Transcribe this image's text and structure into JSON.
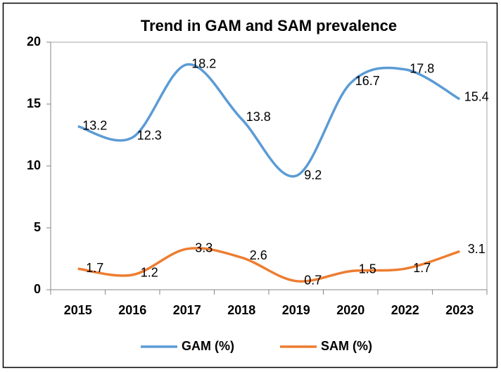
{
  "chart_data": {
    "type": "line",
    "title": "Trend in GAM and SAM prevalence",
    "categories": [
      "2015",
      "2016",
      "2017",
      "2018",
      "2019",
      "2020",
      "2022",
      "2023"
    ],
    "series": [
      {
        "name": "GAM (%)",
        "color": "#5b9bd5",
        "values": [
          13.2,
          12.3,
          18.2,
          13.8,
          9.2,
          16.7,
          17.8,
          15.4
        ]
      },
      {
        "name": "SAM (%)",
        "color": "#ed7d31",
        "values": [
          1.7,
          1.2,
          3.3,
          2.6,
          0.7,
          1.5,
          1.7,
          3.1
        ]
      }
    ],
    "ylim": [
      0,
      20
    ],
    "yticks": [
      0,
      5,
      10,
      15,
      20
    ],
    "grid": false,
    "smooth": true,
    "legend": "bottom"
  }
}
